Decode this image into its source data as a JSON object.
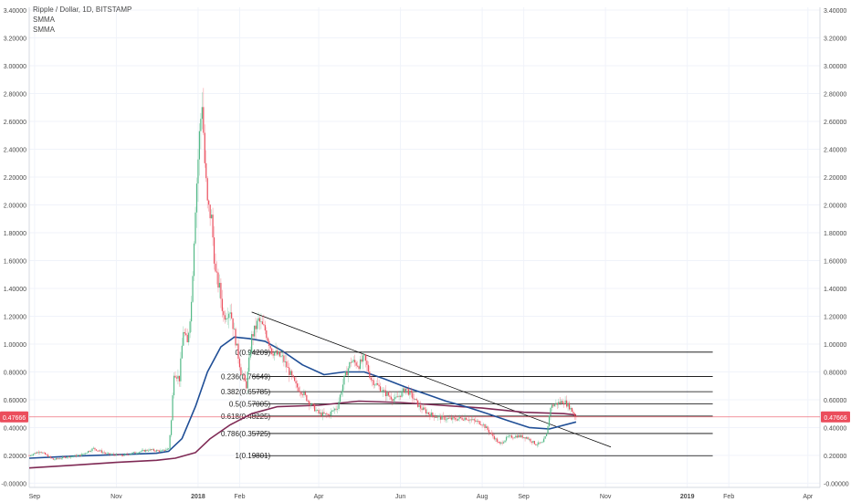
{
  "legend": {
    "symbol": "Ripple / Dollar, 1D, BITSTAMP",
    "indicators": [
      "SMMA",
      "SMMA"
    ]
  },
  "colors": {
    "up": "#53b987",
    "down": "#eb4d5c",
    "smma_fast": "#1f4e96",
    "smma_slow": "#7f2a55",
    "price_line": "#eb4d5c",
    "price_badge": "#eb4d5c",
    "fib": "#000000",
    "trendline": "#000000",
    "axis_text": "#4a4a4a",
    "grid": "#f0f3fa"
  },
  "chart_data": {
    "type": "candlestick",
    "title": "Ripple / Dollar, 1D, BITSTAMP",
    "ylim": [
      -0.03,
      3.42
    ],
    "y_ticks": [
      "3.40000",
      "3.20000",
      "3.00000",
      "2.80000",
      "2.60000",
      "2.40000",
      "2.20000",
      "2.00000",
      "1.80000",
      "1.60000",
      "1.40000",
      "1.20000",
      "1.00000",
      "0.80000",
      "0.60000",
      "0.40000",
      "0.20000",
      "-0.00000"
    ],
    "y_tick_values": [
      3.4,
      3.2,
      3.0,
      2.8,
      2.6,
      2.4,
      2.2,
      2.0,
      1.8,
      1.6,
      1.4,
      1.2,
      1.0,
      0.8,
      0.6,
      0.4,
      0.2,
      0.0
    ],
    "x_ticks": [
      "Sep",
      "Nov",
      "2018",
      "Feb",
      "Apr",
      "Jun",
      "Aug",
      "Sep",
      "Nov",
      "2019",
      "Feb",
      "Apr"
    ],
    "x_tick_dates": [
      "2017-09-01",
      "2017-11-01",
      "2018-01-01",
      "2018-02-01",
      "2018-04-01",
      "2018-06-01",
      "2018-08-01",
      "2018-09-01",
      "2018-11-01",
      "2019-01-01",
      "2019-02-01",
      "2019-04-01"
    ],
    "last_price": 0.47666,
    "last_price_label": "0.47666",
    "price_path": [
      [
        "2017-08-28",
        0.2
      ],
      [
        "2017-09-05",
        0.23
      ],
      [
        "2017-09-15",
        0.17
      ],
      [
        "2017-09-25",
        0.19
      ],
      [
        "2017-10-05",
        0.2
      ],
      [
        "2017-10-15",
        0.25
      ],
      [
        "2017-10-25",
        0.21
      ],
      [
        "2017-11-05",
        0.2
      ],
      [
        "2017-11-15",
        0.22
      ],
      [
        "2017-11-25",
        0.24
      ],
      [
        "2017-12-05",
        0.23
      ],
      [
        "2017-12-10",
        0.25
      ],
      [
        "2017-12-12",
        0.45
      ],
      [
        "2017-12-14",
        0.8
      ],
      [
        "2017-12-18",
        0.75
      ],
      [
        "2017-12-21",
        1.1
      ],
      [
        "2017-12-24",
        1.0
      ],
      [
        "2017-12-27",
        1.3
      ],
      [
        "2017-12-30",
        2.0
      ],
      [
        "2018-01-02",
        2.5
      ],
      [
        "2018-01-04",
        2.75
      ],
      [
        "2018-01-06",
        2.3
      ],
      [
        "2018-01-08",
        2.0
      ],
      [
        "2018-01-11",
        1.9
      ],
      [
        "2018-01-14",
        1.5
      ],
      [
        "2018-01-17",
        1.4
      ],
      [
        "2018-01-20",
        1.2
      ],
      [
        "2018-01-25",
        1.25
      ],
      [
        "2018-02-02",
        0.8
      ],
      [
        "2018-02-06",
        0.7
      ],
      [
        "2018-02-10",
        1.05
      ],
      [
        "2018-02-15",
        1.17
      ],
      [
        "2018-02-20",
        1.1
      ],
      [
        "2018-02-25",
        0.95
      ],
      [
        "2018-03-05",
        0.9
      ],
      [
        "2018-03-10",
        0.8
      ],
      [
        "2018-03-15",
        0.7
      ],
      [
        "2018-03-20",
        0.65
      ],
      [
        "2018-03-25",
        0.58
      ],
      [
        "2018-04-01",
        0.5
      ],
      [
        "2018-04-08",
        0.49
      ],
      [
        "2018-04-15",
        0.55
      ],
      [
        "2018-04-20",
        0.75
      ],
      [
        "2018-04-25",
        0.88
      ],
      [
        "2018-05-01",
        0.85
      ],
      [
        "2018-05-05",
        0.9
      ],
      [
        "2018-05-10",
        0.75
      ],
      [
        "2018-05-15",
        0.7
      ],
      [
        "2018-05-20",
        0.65
      ],
      [
        "2018-05-28",
        0.6
      ],
      [
        "2018-06-05",
        0.68
      ],
      [
        "2018-06-10",
        0.62
      ],
      [
        "2018-06-15",
        0.55
      ],
      [
        "2018-06-22",
        0.5
      ],
      [
        "2018-07-01",
        0.47
      ],
      [
        "2018-07-10",
        0.46
      ],
      [
        "2018-07-20",
        0.47
      ],
      [
        "2018-07-25",
        0.45
      ],
      [
        "2018-08-01",
        0.43
      ],
      [
        "2018-08-08",
        0.35
      ],
      [
        "2018-08-14",
        0.28
      ],
      [
        "2018-08-20",
        0.33
      ],
      [
        "2018-08-27",
        0.34
      ],
      [
        "2018-09-03",
        0.33
      ],
      [
        "2018-09-10",
        0.28
      ],
      [
        "2018-09-15",
        0.29
      ],
      [
        "2018-09-18",
        0.35
      ],
      [
        "2018-09-21",
        0.55
      ],
      [
        "2018-09-25",
        0.57
      ],
      [
        "2018-10-01",
        0.59
      ],
      [
        "2018-10-05",
        0.55
      ],
      [
        "2018-10-10",
        0.47666
      ]
    ],
    "smma_fast": [
      [
        "2017-08-28",
        0.18
      ],
      [
        "2017-10-01",
        0.195
      ],
      [
        "2017-11-01",
        0.205
      ],
      [
        "2017-12-01",
        0.215
      ],
      [
        "2017-12-10",
        0.23
      ],
      [
        "2017-12-20",
        0.32
      ],
      [
        "2017-12-30",
        0.55
      ],
      [
        "2018-01-08",
        0.8
      ],
      [
        "2018-01-18",
        0.98
      ],
      [
        "2018-01-28",
        1.05
      ],
      [
        "2018-02-08",
        1.04
      ],
      [
        "2018-02-20",
        1.02
      ],
      [
        "2018-03-05",
        0.95
      ],
      [
        "2018-03-20",
        0.85
      ],
      [
        "2018-04-05",
        0.78
      ],
      [
        "2018-04-20",
        0.8
      ],
      [
        "2018-05-05",
        0.8
      ],
      [
        "2018-05-20",
        0.75
      ],
      [
        "2018-06-05",
        0.69
      ],
      [
        "2018-06-20",
        0.64
      ],
      [
        "2018-07-05",
        0.59
      ],
      [
        "2018-07-20",
        0.55
      ],
      [
        "2018-08-05",
        0.5
      ],
      [
        "2018-08-20",
        0.45
      ],
      [
        "2018-09-05",
        0.4
      ],
      [
        "2018-09-20",
        0.39
      ],
      [
        "2018-10-10",
        0.44
      ]
    ],
    "smma_slow": [
      [
        "2017-08-28",
        0.11
      ],
      [
        "2017-10-01",
        0.13
      ],
      [
        "2017-11-01",
        0.15
      ],
      [
        "2017-12-01",
        0.165
      ],
      [
        "2017-12-15",
        0.18
      ],
      [
        "2017-12-30",
        0.22
      ],
      [
        "2018-01-10",
        0.32
      ],
      [
        "2018-01-25",
        0.42
      ],
      [
        "2018-02-10",
        0.5
      ],
      [
        "2018-03-01",
        0.55
      ],
      [
        "2018-04-01",
        0.56
      ],
      [
        "2018-05-01",
        0.59
      ],
      [
        "2018-06-01",
        0.58
      ],
      [
        "2018-07-01",
        0.56
      ],
      [
        "2018-08-01",
        0.54
      ],
      [
        "2018-09-01",
        0.51
      ],
      [
        "2018-10-01",
        0.5
      ],
      [
        "2018-10-10",
        0.49
      ]
    ],
    "fibonacci": {
      "start_date": "2018-02-10",
      "end_date": "2019-01-20",
      "levels": [
        {
          "label": "0(0.94209)",
          "value": 0.94209
        },
        {
          "label": "0.236(0.76649)",
          "value": 0.76649
        },
        {
          "label": "0.382(0.65785)",
          "value": 0.65785
        },
        {
          "label": "0.5(0.57005)",
          "value": 0.57005
        },
        {
          "label": "0.618(0.48225)",
          "value": 0.48225
        },
        {
          "label": "0.786(0.35725)",
          "value": 0.35725
        },
        {
          "label": "1(0.19801)",
          "value": 0.19801
        }
      ]
    },
    "trendline": {
      "from": [
        "2018-02-10",
        1.23
      ],
      "to": [
        "2018-11-05",
        0.26
      ]
    }
  }
}
